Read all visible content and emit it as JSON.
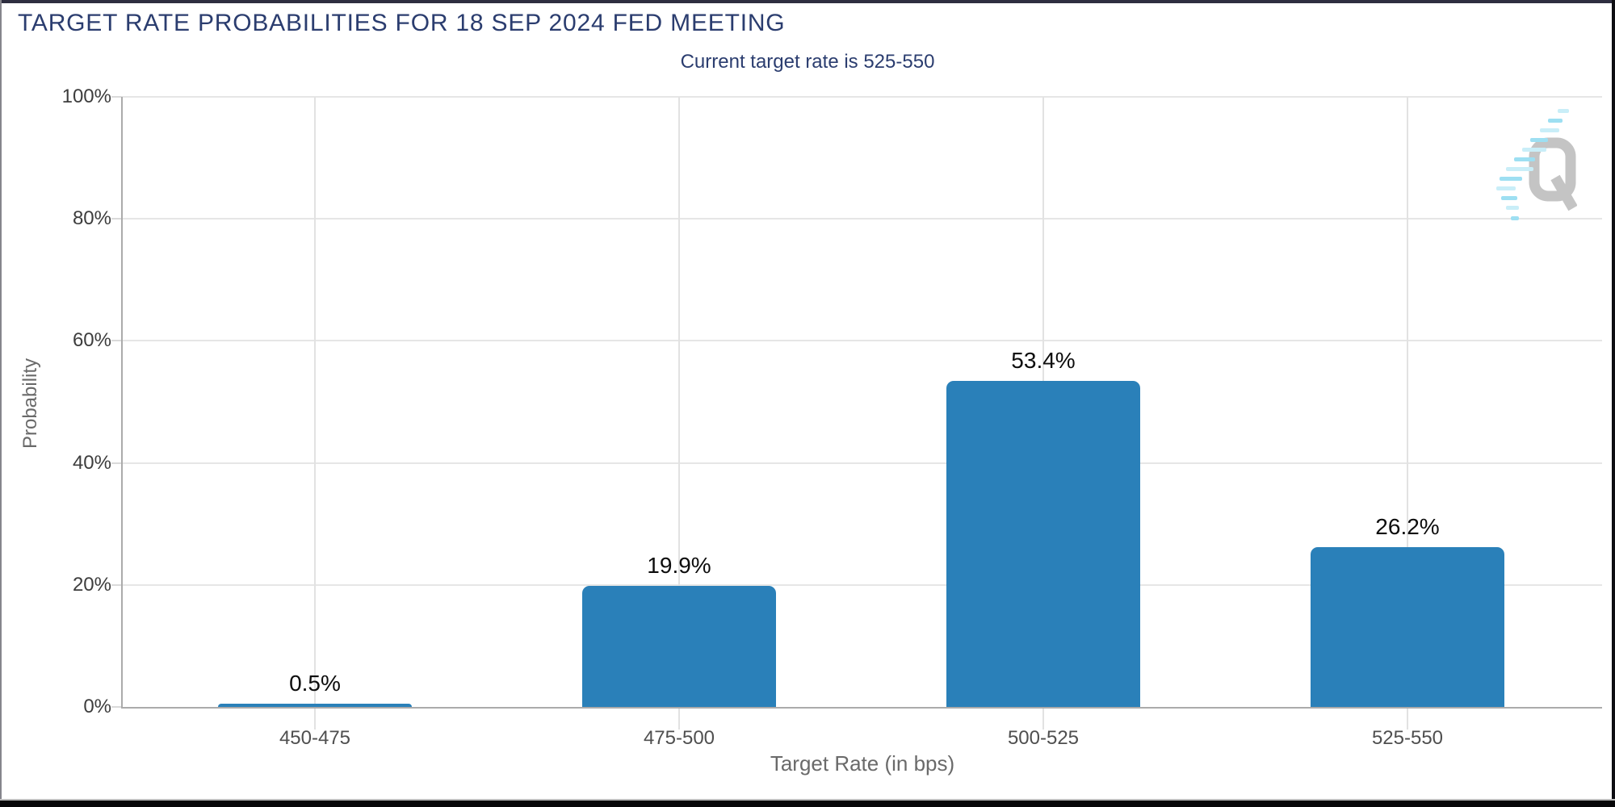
{
  "chart_data": {
    "type": "bar",
    "title": "TARGET RATE PROBABILITIES FOR 18 SEP 2024 FED MEETING",
    "subtitle": "Current target rate is 525-550",
    "categories": [
      "450-475",
      "475-500",
      "500-525",
      "525-550"
    ],
    "values": [
      0.5,
      19.9,
      53.4,
      26.2
    ],
    "value_labels": [
      "0.5%",
      "19.9%",
      "53.4%",
      "26.2%"
    ],
    "xlabel": "Target Rate (in bps)",
    "ylabel": "Probability",
    "ylim": [
      0,
      100
    ],
    "y_ticks": [
      0,
      20,
      40,
      60,
      80,
      100
    ],
    "y_tick_labels": [
      "0%",
      "20%",
      "40%",
      "60%",
      "80%",
      "100%"
    ],
    "grid": true,
    "legend": false,
    "bar_color": "#2a80b9"
  },
  "watermark": {
    "letter": "Q"
  },
  "colors": {
    "title": "#2b3d6f",
    "subtitle": "#2b3d6f",
    "bar": "#2a80b9",
    "gridline": "#e6e6e6",
    "axis_line": "#ababab",
    "y_tick_label": "#3d3d3d",
    "x_tick_label": "#4f4f4f",
    "axis_title": "#6a6a6a",
    "value_label": "#0d0d0d",
    "watermark_q": "#c4c4c4",
    "watermark_dash_light": "#c9eef8",
    "watermark_dash_dark": "#9ddff2"
  }
}
